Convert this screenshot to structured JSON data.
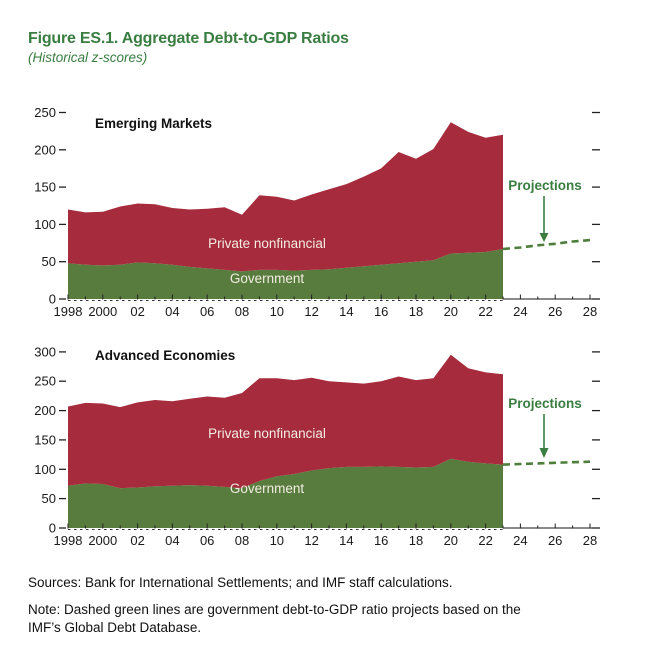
{
  "header": {
    "title": "Figure ES.1. Aggregate Debt-to-GDP Ratios",
    "subtitle": "(Historical z-scores)"
  },
  "footer": {
    "sources": "Sources: Bank for International Settlements; and IMF staff calculations.",
    "note": "Note: Dashed green lines are government debt-to-GDP ratio projects based on the IMF’s Global Debt Database."
  },
  "colors": {
    "private": "#A62B3C",
    "government": "#587C3E",
    "accent_green": "#3A7D41",
    "projection_line": "#4D7E3B",
    "axis": "#222222"
  },
  "chart_data": [
    {
      "type": "area",
      "stacked": true,
      "title": "Emerging Markets",
      "x": [
        1998,
        1999,
        2000,
        2001,
        2002,
        2003,
        2004,
        2005,
        2006,
        2007,
        2008,
        2009,
        2010,
        2011,
        2012,
        2013,
        2014,
        2015,
        2016,
        2017,
        2018,
        2019,
        2020,
        2021,
        2022,
        2023
      ],
      "series": [
        {
          "name": "Government",
          "values": [
            48,
            46,
            45,
            46,
            49,
            48,
            46,
            43,
            41,
            39,
            37,
            39,
            39,
            38,
            39,
            40,
            42,
            44,
            46,
            48,
            50,
            52,
            61,
            62,
            63,
            67
          ]
        },
        {
          "name": "Private nonfinancial",
          "values": [
            72,
            70,
            72,
            78,
            79,
            79,
            76,
            77,
            80,
            84,
            76,
            100,
            98,
            94,
            101,
            107,
            112,
            120,
            129,
            149,
            138,
            149,
            176,
            162,
            153,
            153
          ]
        }
      ],
      "projection": {
        "label": "Projections",
        "name": "Government projection",
        "x": [
          2023,
          2024,
          2025,
          2026,
          2027,
          2028
        ],
        "values": [
          67,
          69,
          72,
          74,
          77,
          79
        ]
      },
      "xlim": [
        1998,
        2028
      ],
      "ylim": [
        0,
        260
      ],
      "yticks": [
        0,
        50,
        100,
        150,
        200,
        250
      ],
      "x_tick_years": [
        1998,
        2000,
        2002,
        2004,
        2006,
        2008,
        2010,
        2012,
        2014,
        2016,
        2018,
        2020,
        2022,
        2024,
        2026,
        2028
      ],
      "x_tick_labels": [
        "1998",
        "2000",
        "02",
        "04",
        "06",
        "08",
        "10",
        "12",
        "14",
        "16",
        "18",
        "20",
        "22",
        "24",
        "26",
        "28"
      ],
      "area_labels": {
        "private": "Private nonfinancial",
        "government": "Government"
      }
    },
    {
      "type": "area",
      "stacked": true,
      "title": "Advanced Economies",
      "x": [
        1998,
        1999,
        2000,
        2001,
        2002,
        2003,
        2004,
        2005,
        2006,
        2007,
        2008,
        2009,
        2010,
        2011,
        2012,
        2013,
        2014,
        2015,
        2016,
        2017,
        2018,
        2019,
        2020,
        2021,
        2022,
        2023
      ],
      "series": [
        {
          "name": "Government",
          "values": [
            72,
            76,
            75,
            68,
            69,
            71,
            72,
            73,
            72,
            70,
            68,
            80,
            88,
            92,
            98,
            102,
            104,
            104,
            105,
            104,
            103,
            104,
            118,
            113,
            110,
            108
          ]
        },
        {
          "name": "Private nonfinancial",
          "values": [
            135,
            137,
            137,
            138,
            145,
            147,
            144,
            147,
            152,
            152,
            162,
            175,
            167,
            160,
            158,
            148,
            144,
            142,
            145,
            154,
            149,
            151,
            177,
            159,
            155,
            154
          ]
        }
      ],
      "projection": {
        "label": "Projections",
        "name": "Government projection",
        "x": [
          2023,
          2024,
          2025,
          2026,
          2027,
          2028
        ],
        "values": [
          108,
          109,
          110,
          111,
          112,
          113
        ]
      },
      "xlim": [
        1998,
        2028
      ],
      "ylim": [
        0,
        310
      ],
      "yticks": [
        0,
        50,
        100,
        150,
        200,
        250,
        300
      ],
      "x_tick_years": [
        1998,
        2000,
        2002,
        2004,
        2006,
        2008,
        2010,
        2012,
        2014,
        2016,
        2018,
        2020,
        2022,
        2024,
        2026,
        2028
      ],
      "x_tick_labels": [
        "1998",
        "2000",
        "02",
        "04",
        "06",
        "08",
        "10",
        "12",
        "14",
        "16",
        "18",
        "20",
        "22",
        "24",
        "26",
        "28"
      ],
      "area_labels": {
        "private": "Private nonfinancial",
        "government": "Government"
      }
    }
  ]
}
